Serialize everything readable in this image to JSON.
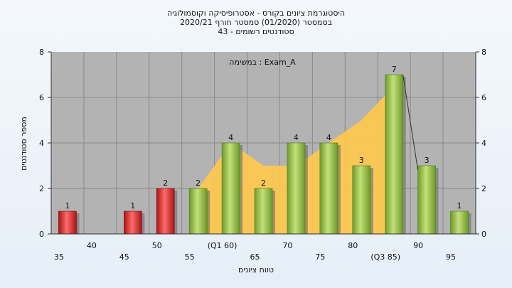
{
  "chart_data": {
    "type": "bar",
    "title_lines": [
      "היסטוגרמת ציונים בקורס - אסטרופיסיקה וקוסמולוגיה",
      "בסמסטר  (01/2020)  סמסטר חורף  2020/21",
      "סטודנטים רשומים - 43"
    ],
    "annotation": "במשימה : Exam_A",
    "xlabel": "טווח ציונים",
    "ylabel": "מספר סטודנטים",
    "ylim": [
      0,
      8
    ],
    "yticks": [
      0,
      2,
      4,
      6,
      8
    ],
    "categories": [
      "35",
      "40",
      "45",
      "50",
      "55",
      "(Q1 60)",
      "65",
      "70",
      "75",
      "80",
      "(Q3 85)",
      "90",
      "95"
    ],
    "values": [
      1,
      0,
      1,
      2,
      2,
      4,
      2,
      4,
      4,
      3,
      7,
      3,
      1
    ],
    "value_labels": [
      "1",
      "",
      "1",
      "2",
      "2",
      "4",
      "2",
      "4",
      "4",
      "3",
      "7",
      "3",
      "1"
    ],
    "bar_colors": [
      "#d42a2a",
      "#d42a2a",
      "#d42a2a",
      "#d42a2a",
      "#8fbd3f",
      "#8fbd3f",
      "#8fbd3f",
      "#8fbd3f",
      "#8fbd3f",
      "#8fbd3f",
      "#8fbd3f",
      "#8fbd3f",
      "#8fbd3f"
    ],
    "area_values": [
      null,
      null,
      null,
      null,
      2,
      4,
      3,
      3,
      4,
      5,
      6.5,
      null,
      null
    ],
    "area_color": "#ffc94a",
    "grid": true,
    "plot_background": "#b3b3b3"
  }
}
